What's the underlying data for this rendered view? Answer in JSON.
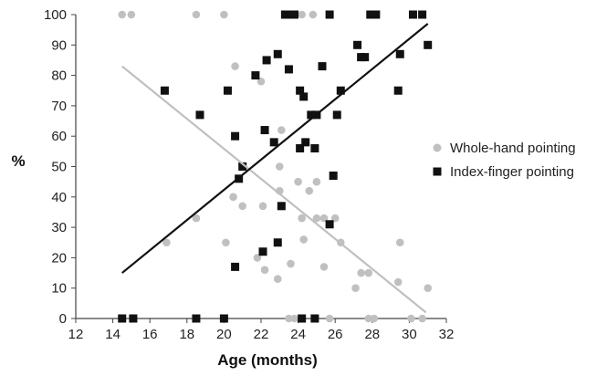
{
  "chart_data": {
    "type": "scatter",
    "xlabel": "Age (months)",
    "ylabel": "%",
    "xlim": [
      12,
      32
    ],
    "ylim": [
      0,
      100
    ],
    "x_ticks": [
      "12",
      "14",
      "16",
      "18",
      "20",
      "22",
      "24",
      "26",
      "28",
      "30",
      "32"
    ],
    "y_ticks": [
      "0",
      "10",
      "20",
      "30",
      "40",
      "50",
      "60",
      "70",
      "80",
      "90",
      "100"
    ],
    "grid": false,
    "legend_position": "right",
    "series": [
      {
        "name": "Whole-hand pointing",
        "marker": "circle",
        "color": "#c0c0c0",
        "points": [
          [
            14.5,
            100
          ],
          [
            15.0,
            100
          ],
          [
            18.5,
            100
          ],
          [
            20.0,
            100
          ],
          [
            24.2,
            100
          ],
          [
            24.8,
            100
          ],
          [
            20.6,
            83
          ],
          [
            22.0,
            78
          ],
          [
            23.1,
            62
          ],
          [
            23.0,
            50
          ],
          [
            20.5,
            40
          ],
          [
            21.0,
            37
          ],
          [
            22.1,
            37
          ],
          [
            23.0,
            42
          ],
          [
            24.0,
            45
          ],
          [
            24.6,
            42
          ],
          [
            25.0,
            45
          ],
          [
            20.1,
            25
          ],
          [
            18.5,
            33
          ],
          [
            16.9,
            25
          ],
          [
            21.8,
            20
          ],
          [
            22.2,
            16
          ],
          [
            22.9,
            13
          ],
          [
            23.6,
            18
          ],
          [
            24.3,
            26
          ],
          [
            24.2,
            33
          ],
          [
            25.0,
            33
          ],
          [
            25.4,
            33
          ],
          [
            26.0,
            33
          ],
          [
            26.3,
            25
          ],
          [
            25.4,
            17
          ],
          [
            27.1,
            10
          ],
          [
            27.4,
            15
          ],
          [
            27.8,
            15
          ],
          [
            29.5,
            25
          ],
          [
            29.4,
            12
          ],
          [
            31.0,
            10
          ],
          [
            23.5,
            0
          ],
          [
            23.8,
            0
          ],
          [
            25.7,
            0
          ],
          [
            27.8,
            0
          ],
          [
            28.1,
            0
          ],
          [
            30.1,
            0
          ],
          [
            30.7,
            0
          ]
        ]
      },
      {
        "name": "Index-finger pointing",
        "marker": "square",
        "color": "#111111",
        "points": [
          [
            14.5,
            0
          ],
          [
            15.1,
            0
          ],
          [
            18.5,
            0
          ],
          [
            20.0,
            0
          ],
          [
            24.2,
            0
          ],
          [
            24.9,
            0
          ],
          [
            16.8,
            75
          ],
          [
            18.7,
            67
          ],
          [
            20.2,
            75
          ],
          [
            20.6,
            60
          ],
          [
            21.0,
            50
          ],
          [
            20.8,
            46
          ],
          [
            20.6,
            17
          ],
          [
            22.1,
            22
          ],
          [
            22.9,
            25
          ],
          [
            23.1,
            37
          ],
          [
            22.7,
            58
          ],
          [
            22.2,
            62
          ],
          [
            21.7,
            80
          ],
          [
            22.3,
            85
          ],
          [
            22.9,
            87
          ],
          [
            23.5,
            82
          ],
          [
            23.3,
            100
          ],
          [
            23.6,
            100
          ],
          [
            23.8,
            100
          ],
          [
            24.1,
            75
          ],
          [
            24.3,
            73
          ],
          [
            24.1,
            56
          ],
          [
            24.4,
            58
          ],
          [
            24.7,
            67
          ],
          [
            25.0,
            67
          ],
          [
            24.9,
            56
          ],
          [
            25.3,
            83
          ],
          [
            25.7,
            31
          ],
          [
            25.9,
            47
          ],
          [
            26.1,
            67
          ],
          [
            26.3,
            75
          ],
          [
            25.7,
            100
          ],
          [
            27.2,
            90
          ],
          [
            27.4,
            86
          ],
          [
            27.6,
            86
          ],
          [
            27.9,
            100
          ],
          [
            28.2,
            100
          ],
          [
            29.4,
            75
          ],
          [
            29.5,
            87
          ],
          [
            30.2,
            100
          ],
          [
            30.7,
            100
          ],
          [
            31.0,
            90
          ]
        ]
      }
    ],
    "trend_lines": [
      {
        "series": "Whole-hand pointing",
        "color": "#c0c0c0",
        "x": [
          14.5,
          30.9
        ],
        "y": [
          83,
          2
        ]
      },
      {
        "series": "Index-finger pointing",
        "color": "#111111",
        "x": [
          14.5,
          31.0
        ],
        "y": [
          15,
          97
        ]
      }
    ]
  }
}
